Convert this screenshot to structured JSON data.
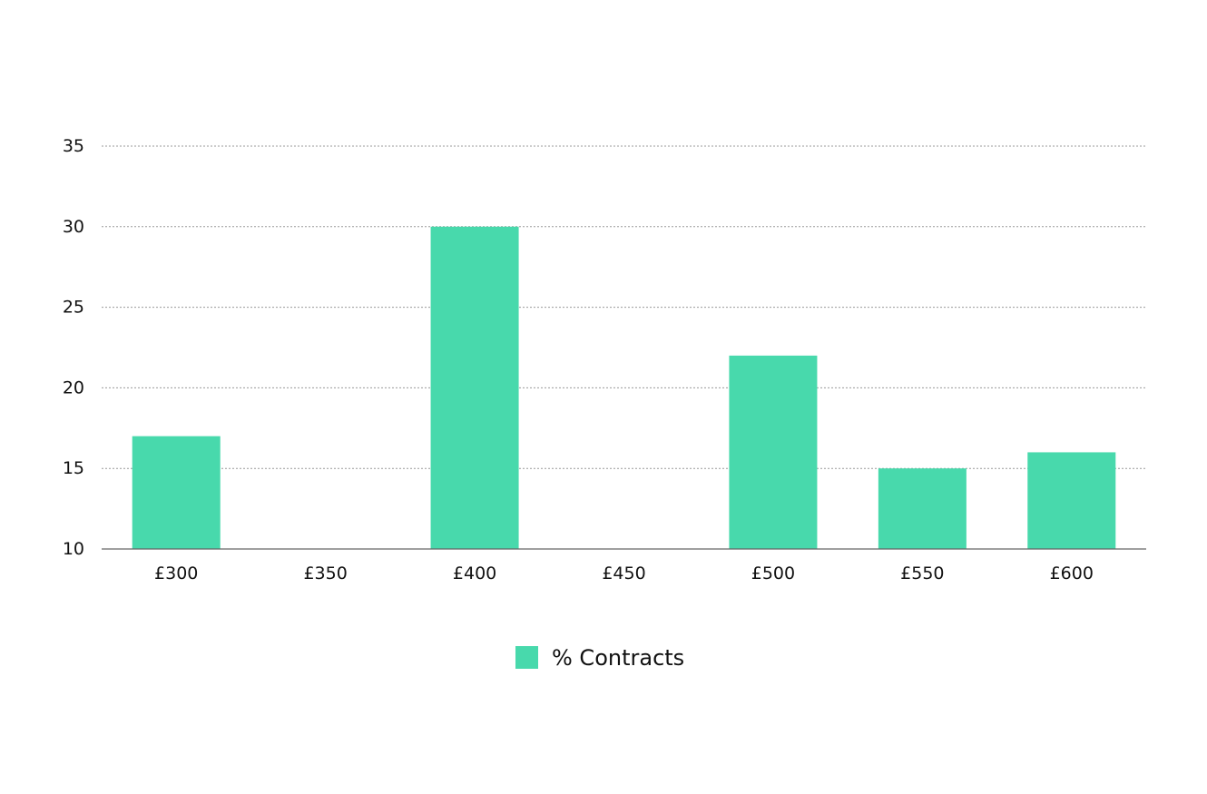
{
  "chart_data": {
    "type": "bar",
    "title": "",
    "xlabel": "",
    "ylabel": "",
    "categories": [
      "£300",
      "£350",
      "£400",
      "£450",
      "£500",
      "£550",
      "£600"
    ],
    "series": [
      {
        "name": "% Contracts",
        "values": [
          17,
          null,
          30,
          null,
          22,
          15,
          16
        ],
        "color": "#48d9ac"
      }
    ],
    "ylim": [
      10,
      35
    ],
    "yticks": [
      10,
      15,
      20,
      25,
      30,
      35
    ],
    "grid": true,
    "legend_position": "bottom-center"
  },
  "colors": {
    "bar": "#48d9ac",
    "grid": "#999999",
    "axis": "#666666",
    "text": "#111111"
  }
}
